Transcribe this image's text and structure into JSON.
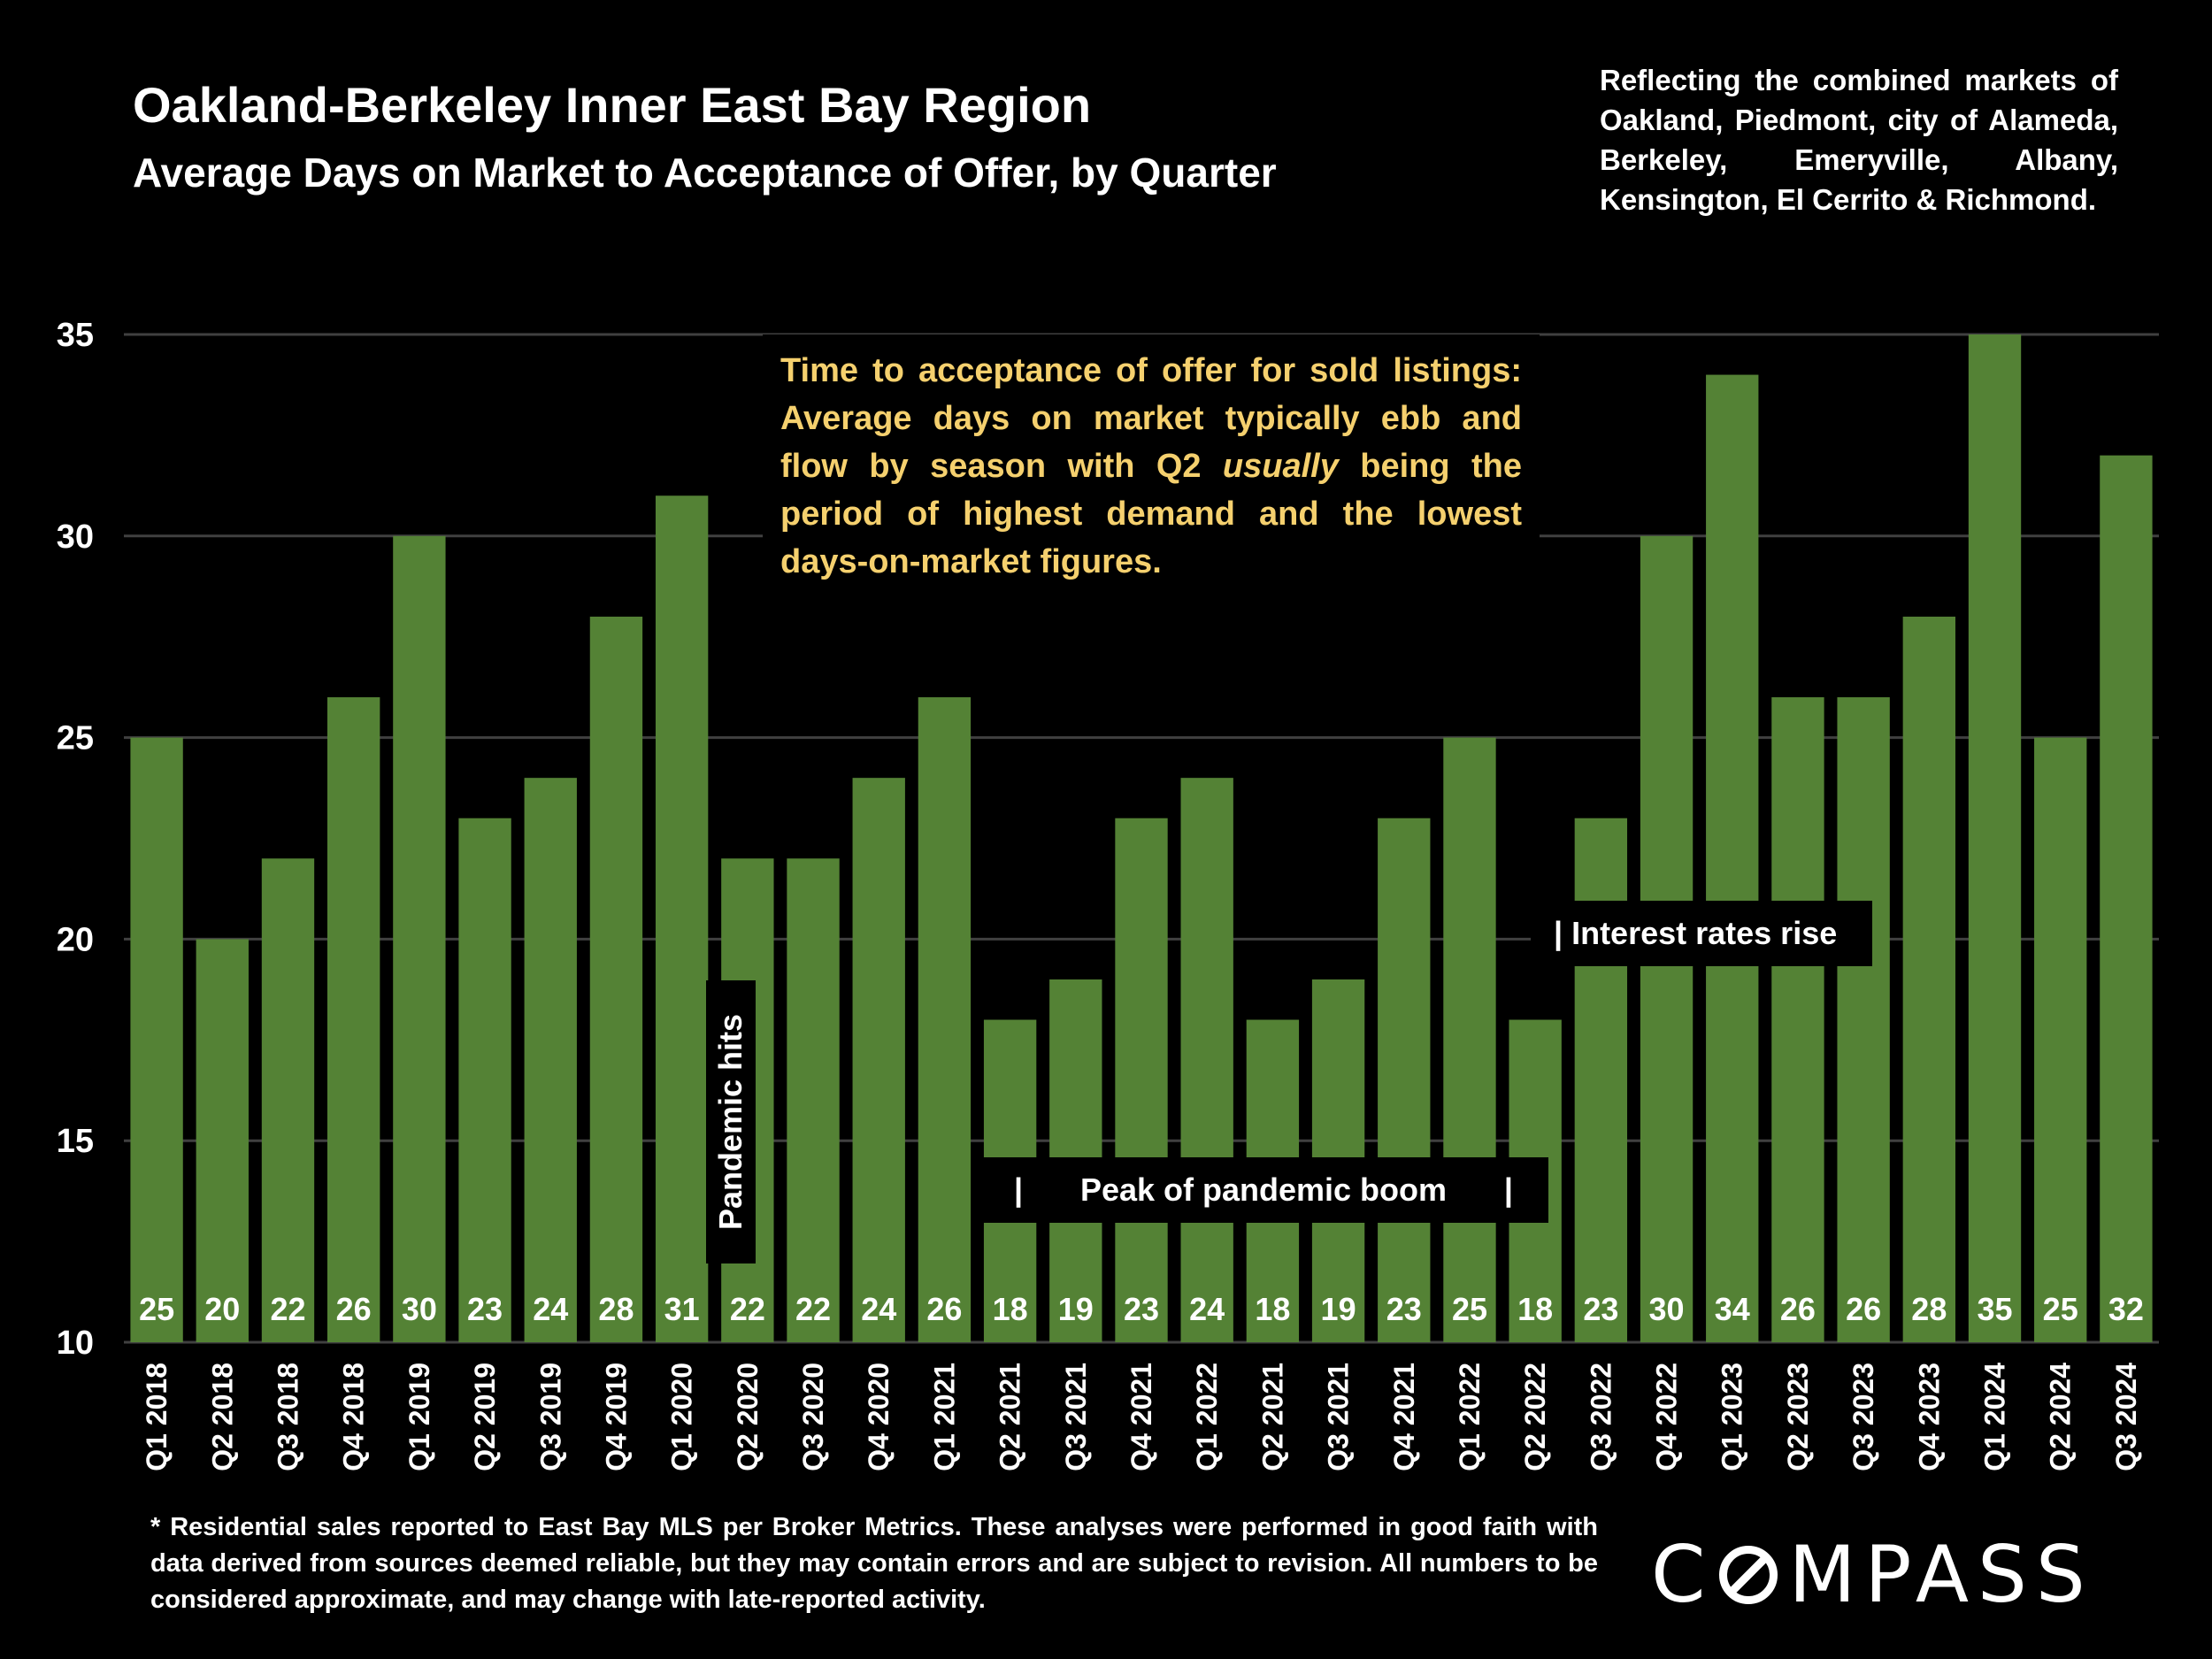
{
  "header": {
    "title": "Oakland-Berkeley Inner East Bay Region",
    "subtitle": "Average Days on Market to Acceptance of Offer, by Quarter",
    "note": "Reflecting the combined markets of Oakland, Piedmont, city of Alameda, Berkeley, Emeryville, Albany, Kensington, El Cerrito & Richmond."
  },
  "callout": {
    "before": "Time to acceptance of offer for sold listings:  Average days on market typically ebb and flow by season with Q2 ",
    "emphasis": "usually",
    "after": " being the period of highest demand and the lowest days-on-market figures."
  },
  "annotations": {
    "pandemic": "Pandemic hits",
    "peak_left": "|",
    "peak_text": "Peak of pandemic boom",
    "peak_right": "|",
    "rates": "| Interest rates rise"
  },
  "footnote": "* Residential sales reported to East Bay MLS per Broker Metrics. These analyses were performed in good faith with data derived from sources deemed reliable, but they may contain errors and are subject to revision. All numbers to  be considered  approximate, and may change with late-reported activity.",
  "logo": {
    "pre": "C",
    "post": "MPASS"
  },
  "colors": {
    "bar": "#548235",
    "background": "#000000",
    "grid": "#404040",
    "callout_text": "#f5d06e"
  },
  "chart_data": {
    "type": "bar",
    "title": "Average Days on Market to Acceptance of Offer, by Quarter",
    "xlabel": "",
    "ylabel": "",
    "ylim": [
      10,
      35
    ],
    "yticks": [
      10,
      15,
      20,
      25,
      30,
      35
    ],
    "grid": true,
    "categories": [
      "Q1 2018",
      "Q2 2018",
      "Q3 2018",
      "Q4 2018",
      "Q1 2019",
      "Q2 2019",
      "Q3 2019",
      "Q4 2019",
      "Q1 2020",
      "Q2 2020",
      "Q3 2020",
      "Q4 2020",
      "Q1 2021",
      "Q2 2021",
      "Q3 2021",
      "Q4 2021",
      "Q1 2022",
      "Q2 2021",
      "Q3 2021",
      "Q4 2021",
      "Q1 2022",
      "Q2 2022",
      "Q3 2022",
      "Q4 2022",
      "Q1 2023",
      "Q2 2023",
      "Q3 2023",
      "Q4 2023",
      "Q1 2024",
      "Q2 2024",
      "Q3 2024"
    ],
    "values": [
      25,
      20,
      22,
      26,
      30,
      23,
      24,
      28,
      31,
      22,
      22,
      24,
      26,
      18,
      19,
      23,
      24,
      18,
      19,
      23,
      25,
      18,
      23,
      30,
      34,
      26,
      26,
      28,
      35,
      25,
      32
    ]
  }
}
